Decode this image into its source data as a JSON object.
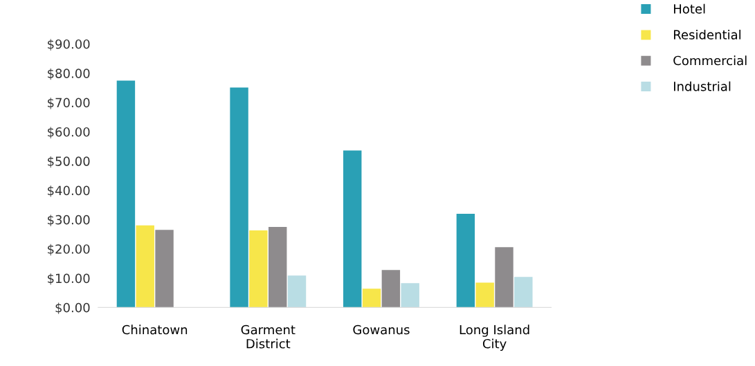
{
  "chart_data": {
    "type": "bar",
    "categories": [
      "Chinatown",
      "Garment\nDistrict",
      "Gowanus",
      "Long Island\nCity"
    ],
    "series": [
      {
        "name": "Hotel",
        "color": "#2aa0b5",
        "values": [
          77.5,
          75.1,
          53.6,
          32
        ]
      },
      {
        "name": "Residential",
        "color": "#f7e64a",
        "values": [
          28,
          26.3,
          6.4,
          8.5
        ]
      },
      {
        "name": "Commercial",
        "color": "#8e8b8d",
        "values": [
          26.5,
          27.5,
          12.8,
          20.6
        ]
      },
      {
        "name": "Industrial",
        "color": "#b9dde4",
        "values": [
          null,
          10.9,
          8.3,
          10.4
        ]
      }
    ],
    "ylim": [
      0,
      90
    ],
    "yticks": [
      {
        "value": 0,
        "label": "$0.00"
      },
      {
        "value": 10,
        "label": "$10.00"
      },
      {
        "value": 20,
        "label": "$20.00"
      },
      {
        "value": 30,
        "label": "$30.00"
      },
      {
        "value": 40,
        "label": "$40.00"
      },
      {
        "value": 50,
        "label": "$50.00"
      },
      {
        "value": 60,
        "label": "$60.00"
      },
      {
        "value": 70,
        "label": "$70.00"
      },
      {
        "value": 80,
        "label": "$80.00"
      },
      {
        "value": 90,
        "label": "$90.00"
      }
    ],
    "legend": "top right",
    "grid": false
  }
}
